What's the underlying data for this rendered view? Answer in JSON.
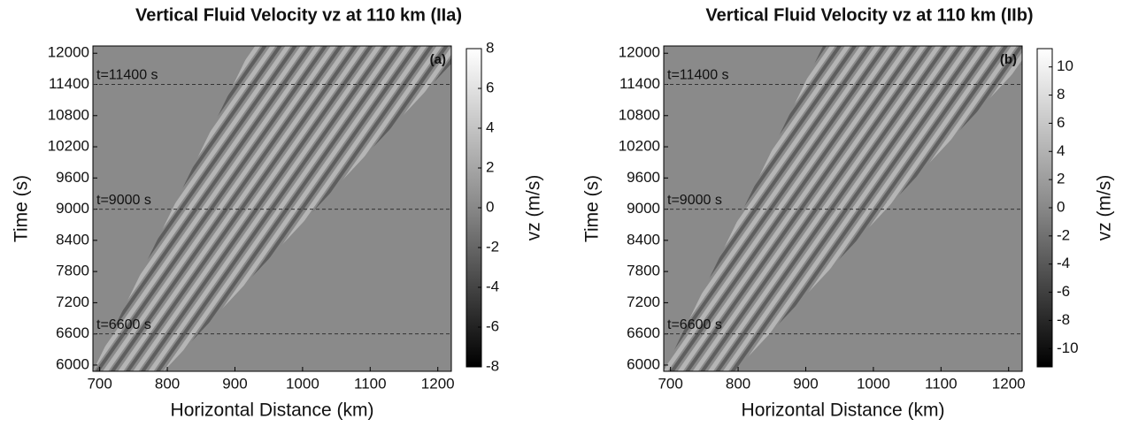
{
  "chart_data": [
    {
      "type": "heatmap",
      "title": "Vertical Fluid Velocity vz at 110 km  (IIa)",
      "panel_label": "(a)",
      "x_label": "Horizontal Distance (km)",
      "y_label": "Time (s)",
      "colorbar_label": "vz (m/s)",
      "xlim": [
        690,
        1220
      ],
      "xticks": [
        700,
        800,
        900,
        1000,
        1100,
        1200
      ],
      "ylim": [
        5880,
        12140
      ],
      "yticks": [
        6000,
        6600,
        7200,
        7800,
        8400,
        9000,
        9600,
        10200,
        10800,
        11400,
        12000
      ],
      "clim": [
        -8,
        8
      ],
      "cticks": [
        -8,
        -6,
        -4,
        -2,
        0,
        2,
        4,
        6,
        8
      ],
      "annotations": [
        {
          "text": "t=11400 s",
          "y": 11400
        },
        {
          "text": "t=9000 s",
          "y": 9000
        },
        {
          "text": "t=6600 s",
          "y": 6600
        }
      ]
    },
    {
      "type": "heatmap",
      "title": "Vertical Fluid Velocity vz at 110 km  (IIb)",
      "panel_label": "(b)",
      "x_label": "Horizontal Distance (km)",
      "y_label": "Time (s)",
      "colorbar_label": "vz (m/s)",
      "xlim": [
        690,
        1220
      ],
      "xticks": [
        700,
        800,
        900,
        1000,
        1100,
        1200
      ],
      "ylim": [
        5880,
        12140
      ],
      "yticks": [
        6000,
        6600,
        7200,
        7800,
        8400,
        9000,
        9600,
        10200,
        10800,
        11400,
        12000
      ],
      "clim": [
        -11.3,
        11.3
      ],
      "cticks": [
        -10,
        -8,
        -6,
        -4,
        -2,
        0,
        2,
        4,
        6,
        8,
        10
      ],
      "annotations": [
        {
          "text": "t=11400 s",
          "y": 11400
        },
        {
          "text": "t=9000 s",
          "y": 9000
        },
        {
          "text": "t=6600 s",
          "y": 6600
        }
      ]
    }
  ]
}
